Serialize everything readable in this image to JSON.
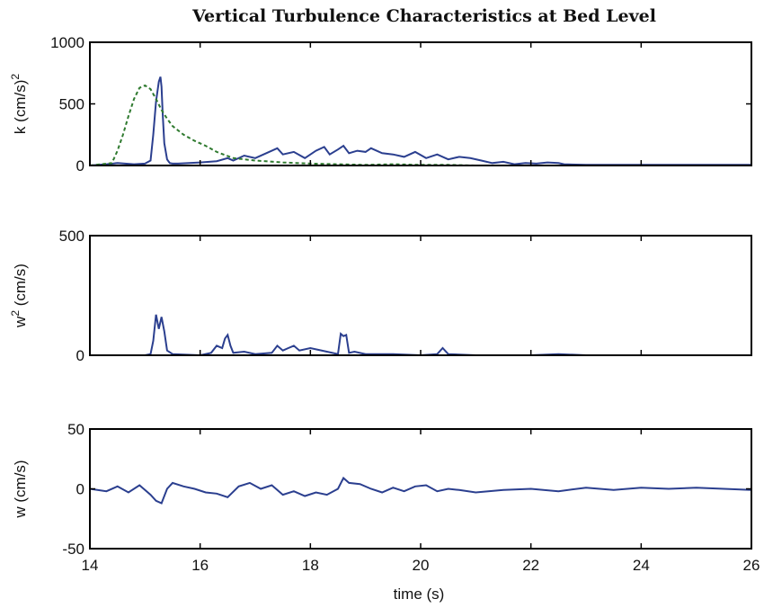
{
  "chart_data": {
    "title": "Vertical Turbulence Characteristics at Bed Level",
    "xlabel": "time (s)",
    "xlim": [
      14,
      26
    ],
    "xticks": [
      "14",
      "16",
      "18",
      "20",
      "22",
      "24",
      "26"
    ],
    "panels": [
      {
        "type": "line",
        "ylabel": "k (cm/s)",
        "ylabel_sup": "2",
        "ylim": [
          0,
          1000
        ],
        "yticks": [
          "0",
          "500",
          "1000"
        ],
        "series": [
          {
            "color": "#2b3f8f",
            "style": "solid",
            "x": [
              14.0,
              14.3,
              14.5,
              14.8,
              15.0,
              15.1,
              15.15,
              15.2,
              15.25,
              15.28,
              15.3,
              15.32,
              15.35,
              15.4,
              15.45,
              15.5,
              15.6,
              15.8,
              16.0,
              16.3,
              16.5,
              16.6,
              16.8,
              17.0,
              17.2,
              17.4,
              17.5,
              17.7,
              17.9,
              18.1,
              18.25,
              18.35,
              18.5,
              18.6,
              18.7,
              18.85,
              19.0,
              19.1,
              19.3,
              19.5,
              19.7,
              19.9,
              20.1,
              20.3,
              20.5,
              20.7,
              20.9,
              21.1,
              21.3,
              21.5,
              21.7,
              21.9,
              22.1,
              22.3,
              22.5,
              22.6,
              23.0,
              24.0,
              25.0,
              26.0
            ],
            "y": [
              0,
              10,
              20,
              10,
              15,
              40,
              250,
              520,
              680,
              720,
              640,
              420,
              180,
              50,
              20,
              15,
              15,
              20,
              25,
              35,
              60,
              40,
              80,
              60,
              100,
              140,
              90,
              110,
              60,
              120,
              150,
              90,
              130,
              160,
              100,
              120,
              110,
              140,
              100,
              90,
              70,
              110,
              60,
              90,
              50,
              70,
              60,
              40,
              20,
              30,
              10,
              20,
              15,
              25,
              20,
              10,
              5,
              5,
              5,
              5
            ]
          },
          {
            "color": "#2f7a2f",
            "style": "dashed",
            "x": [
              14.0,
              14.4,
              14.5,
              14.6,
              14.7,
              14.8,
              14.9,
              15.0,
              15.1,
              15.2,
              15.3,
              15.4,
              15.5,
              15.7,
              15.9,
              16.1,
              16.3,
              16.6,
              17.0,
              17.5,
              18.0,
              18.5,
              19.0,
              19.5,
              20.0,
              20.5,
              21.0,
              22.0,
              26.0
            ],
            "y": [
              0,
              20,
              120,
              250,
              400,
              540,
              630,
              650,
              620,
              540,
              450,
              380,
              320,
              250,
              200,
              160,
              110,
              60,
              40,
              25,
              15,
              10,
              5,
              10,
              5,
              5,
              0,
              0,
              0
            ]
          }
        ]
      },
      {
        "type": "line",
        "ylabel": "w (cm/s)",
        "ylabel_pre": "w",
        "ylabel_sup": "2",
        "ylabel_post": " (cm/s)",
        "ylim": [
          0,
          500
        ],
        "yticks": [
          "0",
          "500"
        ],
        "series": [
          {
            "color": "#2b3f8f",
            "style": "solid",
            "x": [
              14.0,
              15.0,
              15.1,
              15.15,
              15.2,
              15.25,
              15.3,
              15.35,
              15.4,
              15.5,
              16.0,
              16.2,
              16.3,
              16.4,
              16.45,
              16.5,
              16.55,
              16.6,
              16.8,
              17.0,
              17.3,
              17.4,
              17.5,
              17.6,
              17.7,
              17.8,
              18.0,
              18.3,
              18.5,
              18.55,
              18.6,
              18.65,
              18.7,
              18.8,
              19.0,
              19.5,
              20.0,
              20.3,
              20.4,
              20.5,
              21.0,
              22.0,
              22.5,
              23.0,
              24.0,
              25.0,
              26.0
            ],
            "y": [
              0,
              0,
              5,
              60,
              170,
              110,
              160,
              100,
              20,
              5,
              0,
              10,
              40,
              30,
              70,
              85,
              40,
              10,
              15,
              5,
              10,
              40,
              20,
              30,
              40,
              20,
              30,
              15,
              5,
              90,
              80,
              85,
              10,
              15,
              5,
              5,
              0,
              5,
              30,
              5,
              0,
              0,
              5,
              0,
              0,
              0,
              0
            ]
          }
        ]
      },
      {
        "type": "line",
        "ylabel": "w (cm/s)",
        "ylim": [
          -50,
          50
        ],
        "yticks": [
          "-50",
          "0",
          "50"
        ],
        "series": [
          {
            "color": "#2b3f8f",
            "style": "solid",
            "x": [
              14.0,
              14.3,
              14.5,
              14.7,
              14.9,
              15.1,
              15.2,
              15.3,
              15.4,
              15.5,
              15.7,
              15.9,
              16.1,
              16.3,
              16.5,
              16.7,
              16.9,
              17.1,
              17.3,
              17.5,
              17.7,
              17.9,
              18.1,
              18.3,
              18.5,
              18.6,
              18.7,
              18.9,
              19.1,
              19.3,
              19.5,
              19.7,
              19.9,
              20.1,
              20.3,
              20.5,
              20.7,
              21.0,
              21.5,
              22.0,
              22.5,
              23.0,
              23.5,
              24.0,
              24.5,
              25.0,
              25.5,
              26.0
            ],
            "y": [
              0,
              -2,
              2,
              -3,
              3,
              -5,
              -10,
              -12,
              0,
              5,
              2,
              0,
              -3,
              -4,
              -7,
              2,
              5,
              0,
              3,
              -5,
              -2,
              -6,
              -3,
              -5,
              0,
              9,
              5,
              4,
              0,
              -3,
              1,
              -2,
              2,
              3,
              -2,
              0,
              -1,
              -3,
              -1,
              0,
              -2,
              1,
              -1,
              1,
              0,
              1,
              0,
              -1
            ]
          }
        ]
      }
    ]
  }
}
